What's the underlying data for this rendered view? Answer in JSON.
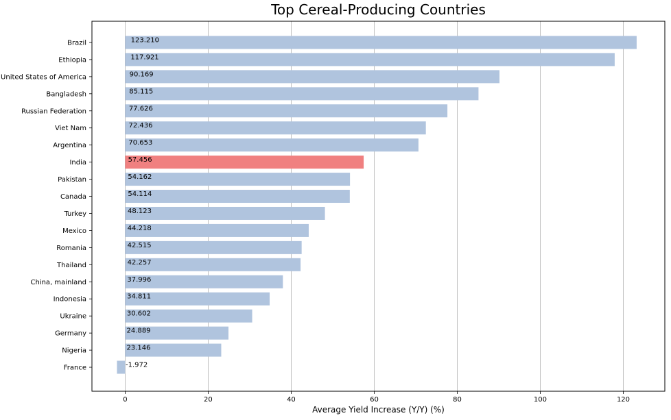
{
  "chart_data": {
    "type": "bar",
    "orientation": "horizontal",
    "title": "Top Cereal-Producing Countries",
    "xlabel": "Average Yield Increase (Y/Y) (%)",
    "ylabel": "",
    "xlim": [
      -8,
      130
    ],
    "xticks": [
      0,
      20,
      40,
      60,
      80,
      100,
      120
    ],
    "grid": "vertical",
    "bar_color": "#b0c4de",
    "highlight_color": "#f08080",
    "highlight_category": "India",
    "categories": [
      "Brazil",
      "Ethiopia",
      "United States of America",
      "Bangladesh",
      "Russian Federation",
      "Viet Nam",
      "Argentina",
      "India",
      "Pakistan",
      "Canada",
      "Turkey",
      "Mexico",
      "Romania",
      "Thailand",
      "China, mainland",
      "Indonesia",
      "Ukraine",
      "Germany",
      "Nigeria",
      "France"
    ],
    "values": [
      123.21,
      117.921,
      90.169,
      85.115,
      77.626,
      72.436,
      70.653,
      57.456,
      54.162,
      54.114,
      48.123,
      44.218,
      42.515,
      42.257,
      37.996,
      34.811,
      30.602,
      24.889,
      23.146,
      -1.972
    ],
    "value_labels": [
      "123.210",
      "117.921",
      "90.169",
      "85.115",
      "77.626",
      "72.436",
      "70.653",
      "57.456",
      "54.162",
      "54.114",
      "48.123",
      "44.218",
      "42.515",
      "42.257",
      "37.996",
      "34.811",
      "30.602",
      "24.889",
      "23.146",
      "-1.972"
    ]
  }
}
